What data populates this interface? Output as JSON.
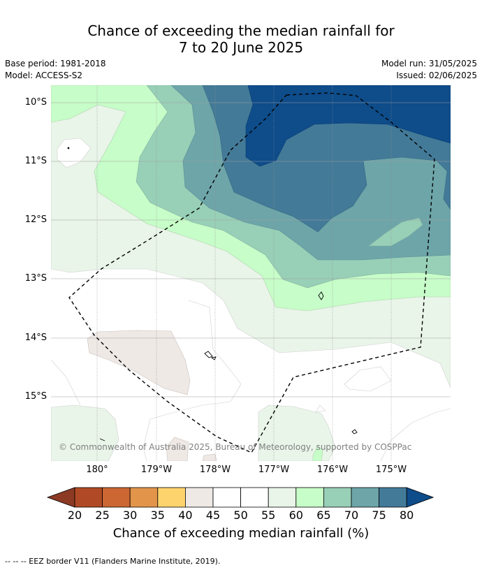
{
  "title": {
    "line1": "Chance of exceeding the median rainfall for",
    "line2": "7 to 20 June 2025"
  },
  "meta": {
    "base_period": "Base period: 1981-2018",
    "model": "Model: ACCESS-S2",
    "model_run": "Model run: 31/05/2025",
    "issued": "Issued: 02/06/2025"
  },
  "map": {
    "lat_labels": [
      "10°S",
      "11°S",
      "12°S",
      "13°S",
      "14°S",
      "15°S"
    ],
    "lon_labels": [
      "180°",
      "179°W",
      "178°W",
      "177°W",
      "176°W",
      "175°W"
    ],
    "copyright": "© Commonwealth of Australia 2025, Bureau of Meteorology, supported by COSPPac"
  },
  "colorbar": {
    "ticks": [
      "20",
      "25",
      "30",
      "35",
      "40",
      "45",
      "50",
      "55",
      "60",
      "65",
      "70",
      "75",
      "80"
    ],
    "colors": [
      "#8c3a24",
      "#b04a26",
      "#cc6632",
      "#e2954a",
      "#fdd36d",
      "#efe9e6",
      "#ffffff",
      "#ffffff",
      "#e9f5e9",
      "#c7fdc8",
      "#98cfb7",
      "#6da5a9",
      "#437a98",
      "#0e4c8a"
    ],
    "label": "Chance of exceeding median rainfall (%)"
  },
  "footer": "--  --  -- EEZ border V11 (Flanders Marine Institute, 2019)."
}
